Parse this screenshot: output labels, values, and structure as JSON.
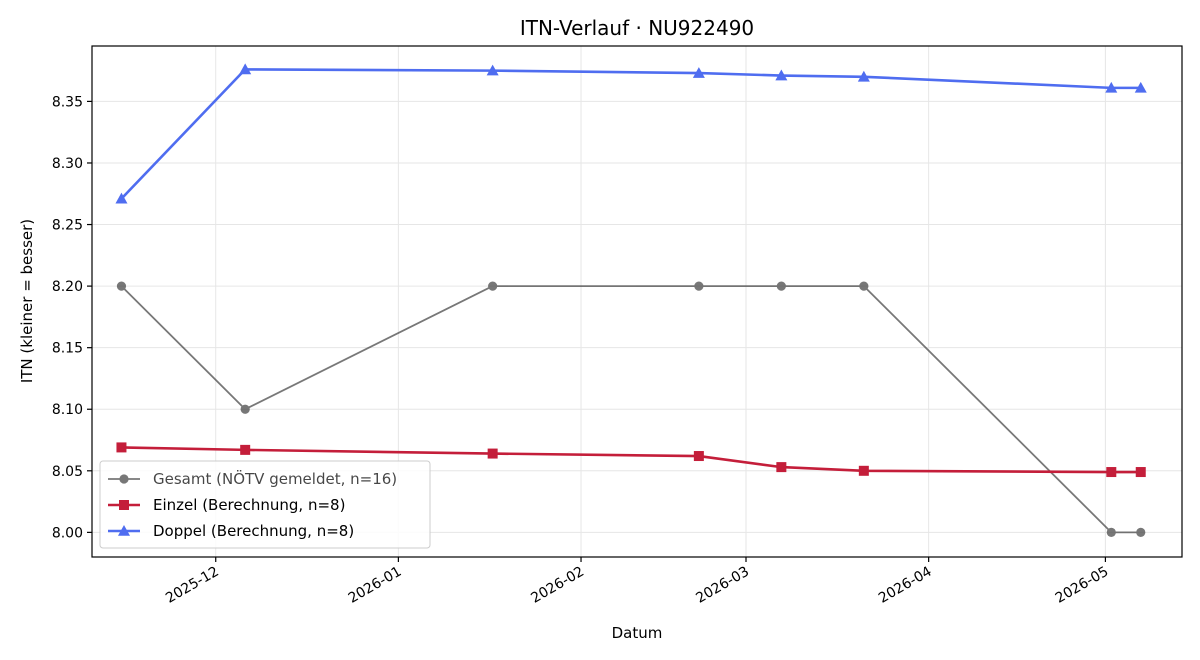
{
  "chart_data": {
    "type": "line",
    "title": "ITN-Verlauf · NU922490",
    "xlabel": "Datum",
    "ylabel": "ITN  (kleiner = besser)",
    "x_axis_type": "date",
    "xlim": [
      "2025-11-10",
      "2026-05-14"
    ],
    "ylim": [
      7.98,
      8.395
    ],
    "x_ticks": [
      "2025-12-01",
      "2026-01-01",
      "2026-02-01",
      "2026-03-01",
      "2026-04-01",
      "2026-05-01"
    ],
    "x_tick_labels": [
      "2025-12",
      "2026-01",
      "2026-02",
      "2026-03",
      "2026-04",
      "2026-05"
    ],
    "y_ticks": [
      8.0,
      8.05,
      8.1,
      8.15,
      8.2,
      8.25,
      8.3,
      8.35
    ],
    "y_tick_labels": [
      "8.00",
      "8.05",
      "8.10",
      "8.15",
      "8.20",
      "8.25",
      "8.30",
      "8.35"
    ],
    "grid": true,
    "legend_position": "lower-left",
    "series": [
      {
        "name": "Gesamt (NÖTV gemeldet, n=16)",
        "color": "#444444",
        "marker": "circle",
        "points": [
          {
            "x": "2025-11-15",
            "y": 8.2
          },
          {
            "x": "2025-12-06",
            "y": 8.1
          },
          {
            "x": "2026-01-17",
            "y": 8.2
          },
          {
            "x": "2026-02-21",
            "y": 8.2
          },
          {
            "x": "2026-03-07",
            "y": 8.2
          },
          {
            "x": "2026-03-21",
            "y": 8.2
          },
          {
            "x": "2026-05-02",
            "y": 8.0
          },
          {
            "x": "2026-05-07",
            "y": 8.0
          }
        ]
      },
      {
        "name": "Einzel (Berechnung, n=8)",
        "color": "#c41e3a",
        "marker": "square",
        "points": [
          {
            "x": "2025-11-15",
            "y": 8.069
          },
          {
            "x": "2025-12-06",
            "y": 8.067
          },
          {
            "x": "2026-01-17",
            "y": 8.064
          },
          {
            "x": "2026-02-21",
            "y": 8.062
          },
          {
            "x": "2026-03-07",
            "y": 8.053
          },
          {
            "x": "2026-03-21",
            "y": 8.05
          },
          {
            "x": "2026-05-02",
            "y": 8.049
          },
          {
            "x": "2026-05-07",
            "y": 8.049
          }
        ]
      },
      {
        "name": "Doppel (Berechnung, n=8)",
        "color": "#4f6df0",
        "marker": "triangle",
        "points": [
          {
            "x": "2025-11-15",
            "y": 8.271
          },
          {
            "x": "2025-12-06",
            "y": 8.376
          },
          {
            "x": "2026-01-17",
            "y": 8.375
          },
          {
            "x": "2026-02-21",
            "y": 8.373
          },
          {
            "x": "2026-03-07",
            "y": 8.371
          },
          {
            "x": "2026-03-21",
            "y": 8.37
          },
          {
            "x": "2026-05-02",
            "y": 8.361
          },
          {
            "x": "2026-05-07",
            "y": 8.361
          }
        ]
      }
    ]
  }
}
